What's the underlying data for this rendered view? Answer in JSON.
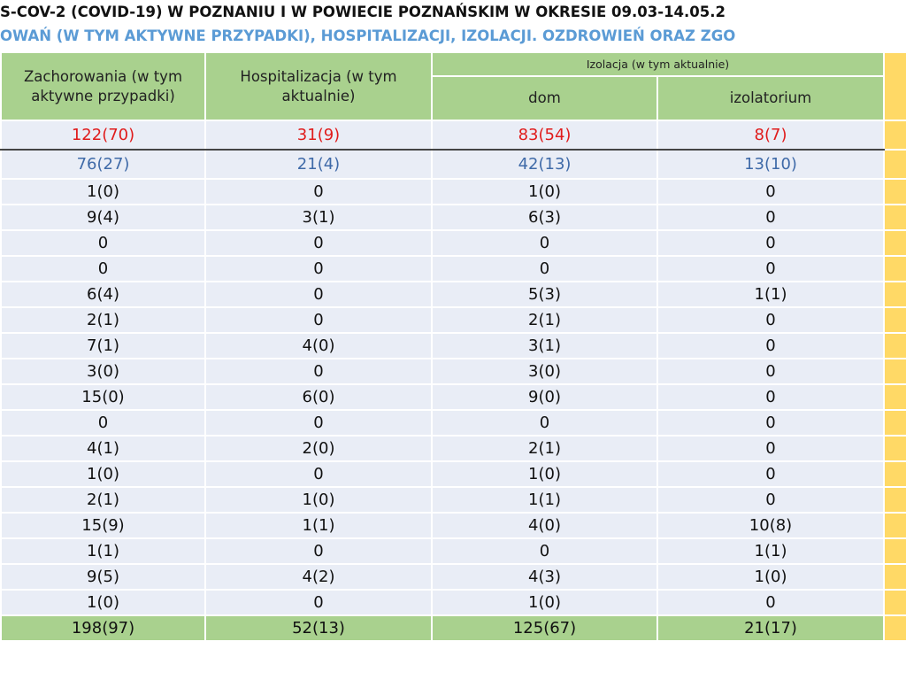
{
  "header": {
    "title": "S-COV-2 (COVID-19) W POZNANIU I W POWIECIE POZNAŃSKIM   W OKRESIE 09.03-14.05.2",
    "subtitle": "OWAŃ (W TYM AKTYWNE PRZYPADKI), HOSPITALIZACJI, IZOLACJI. OZDROWIEŃ ORAZ ZGO"
  },
  "table": {
    "columns": {
      "cases": "Zachorowania  (w tym aktywne przypadki)",
      "hospital": "Hospitalizacja (w tym aktualnie)",
      "isolation": "Izolacja (w tym aktualnie)",
      "home": "dom",
      "isolatorium": "izolatorium"
    },
    "city_row": [
      "122(70)",
      "31(9)",
      "83(54)",
      "8(7)"
    ],
    "county_row": [
      "76(27)",
      "21(4)",
      "42(13)",
      "13(10)"
    ],
    "rows": [
      [
        "1(0)",
        "0",
        "1(0)",
        "0"
      ],
      [
        "9(4)",
        "3(1)",
        "6(3)",
        "0"
      ],
      [
        "0",
        "0",
        "0",
        "0"
      ],
      [
        "0",
        "0",
        "0",
        "0"
      ],
      [
        "6(4)",
        "0",
        "5(3)",
        "1(1)"
      ],
      [
        "2(1)",
        "0",
        "2(1)",
        "0"
      ],
      [
        "7(1)",
        "4(0)",
        "3(1)",
        "0"
      ],
      [
        "3(0)",
        "0",
        "3(0)",
        "0"
      ],
      [
        "15(0)",
        "6(0)",
        "9(0)",
        "0"
      ],
      [
        "0",
        "0",
        "0",
        "0"
      ],
      [
        "4(1)",
        "2(0)",
        "2(1)",
        "0"
      ],
      [
        "1(0)",
        "0",
        "1(0)",
        "0"
      ],
      [
        "2(1)",
        "1(0)",
        "1(1)",
        "0"
      ],
      [
        "15(9)",
        "1(1)",
        "4(0)",
        "10(8)"
      ],
      [
        "1(1)",
        "0",
        "0",
        "1(1)"
      ],
      [
        "9(5)",
        "4(2)",
        "4(3)",
        "1(0)"
      ],
      [
        "1(0)",
        "0",
        "1(0)",
        "0"
      ]
    ],
    "total_row": [
      "198(97)",
      "52(13)",
      "125(67)",
      "21(17)"
    ]
  }
}
